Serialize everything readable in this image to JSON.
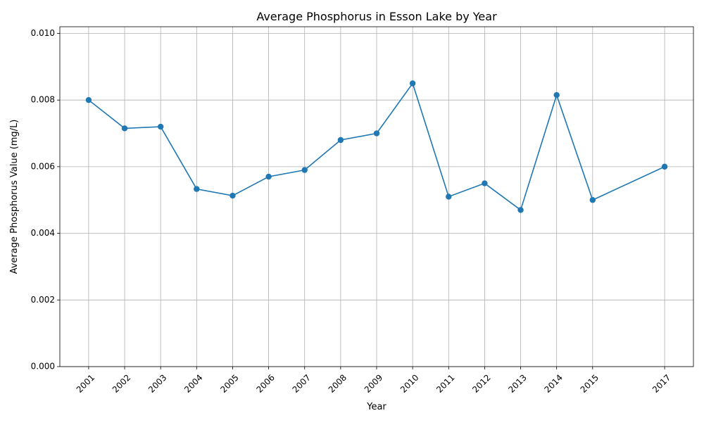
{
  "chart_data": {
    "type": "line",
    "title": "Average Phosphorus in Esson Lake by Year",
    "xlabel": "Year",
    "ylabel": "Average Phosphorus Value (mg/L)",
    "x": [
      2001,
      2002,
      2003,
      2004,
      2005,
      2006,
      2007,
      2008,
      2009,
      2010,
      2011,
      2012,
      2013,
      2014,
      2015,
      2017
    ],
    "x_tick_labels": [
      "2001",
      "2002",
      "2003",
      "2004",
      "2005",
      "2006",
      "2007",
      "2008",
      "2009",
      "2010",
      "2011",
      "2012",
      "2013",
      "2014",
      "2015",
      "2017"
    ],
    "series": [
      {
        "values": [
          0.008,
          0.00715,
          0.0072,
          0.00533,
          0.00513,
          0.0057,
          0.0059,
          0.0068,
          0.007,
          0.0085,
          0.0051,
          0.0055,
          0.0047,
          0.00815,
          0.005,
          0.006
        ],
        "color": "#1f77b4",
        "marker": "circle"
      }
    ],
    "y_ticks": [
      0.0,
      0.002,
      0.004,
      0.006,
      0.008,
      0.01
    ],
    "y_tick_labels": [
      "0.000",
      "0.002",
      "0.004",
      "0.006",
      "0.008",
      "0.010"
    ],
    "xlim": [
      2000.2,
      2017.8
    ],
    "ylim": [
      0,
      0.0102
    ],
    "grid": true,
    "legend": "none",
    "x_tick_rotation": 45
  }
}
